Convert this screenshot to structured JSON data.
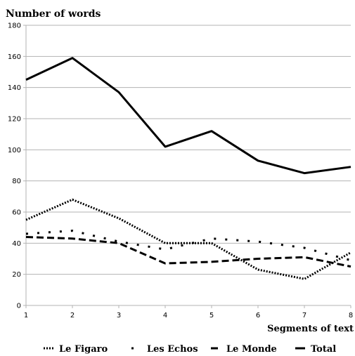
{
  "chart_data": {
    "type": "line",
    "title": "",
    "ylabel": "Number of words",
    "xlabel": "Segments of text",
    "x": [
      1,
      2,
      3,
      4,
      5,
      6,
      7,
      8
    ],
    "x_tick_labels": [
      "1",
      "2",
      "3",
      "4",
      "5",
      "6",
      "7",
      "8"
    ],
    "ylim": [
      0,
      180
    ],
    "y_ticks": [
      0,
      20,
      40,
      60,
      80,
      100,
      120,
      140,
      160,
      180
    ],
    "y_tick_labels": [
      "0",
      "20",
      "40",
      "60",
      "80",
      "100",
      "120",
      "140",
      "160",
      "180"
    ],
    "grid": true,
    "legend_position": "bottom",
    "series": [
      {
        "name": "Le Figaro",
        "values": [
          55,
          68,
          56,
          40,
          40,
          23,
          17,
          34
        ],
        "style": "dotted",
        "color": "#000000"
      },
      {
        "name": "Les Echos",
        "values": [
          46,
          48,
          41,
          36,
          43,
          41,
          37,
          29
        ],
        "style": "sparse-dot",
        "color": "#000000"
      },
      {
        "name": "Le Monde",
        "values": [
          44,
          43,
          40,
          27,
          28,
          30,
          31,
          25
        ],
        "style": "dashed",
        "color": "#000000"
      },
      {
        "name": "Total",
        "values": [
          145,
          159,
          137,
          102,
          112,
          93,
          85,
          89
        ],
        "style": "solid",
        "color": "#000000"
      }
    ]
  }
}
